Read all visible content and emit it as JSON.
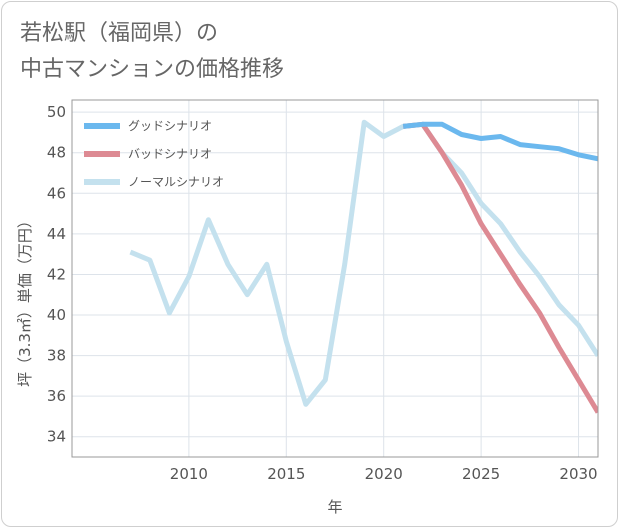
{
  "title_lines": [
    "若松駅（福岡県）の",
    "中古マンションの価格推移"
  ],
  "chart_data": {
    "type": "line",
    "xlabel": "年",
    "ylabel": "坪（3.3㎡）単価（万円）",
    "xlim": [
      2004,
      2031
    ],
    "ylim": [
      33,
      50.6
    ],
    "x_ticks": [
      2010,
      2015,
      2020,
      2025,
      2030
    ],
    "y_ticks": [
      34,
      36,
      38,
      40,
      42,
      44,
      46,
      48,
      50
    ],
    "grid": true,
    "legend_position": "top-left",
    "series": [
      {
        "name": "グッドシナリオ",
        "color": "#6bb8ee",
        "x": [
          2021,
          2022,
          2023,
          2024,
          2025,
          2026,
          2027,
          2028,
          2029,
          2030,
          2031
        ],
        "y": [
          49.3,
          49.4,
          49.4,
          48.9,
          48.7,
          48.8,
          48.4,
          48.3,
          48.2,
          47.9,
          47.7
        ]
      },
      {
        "name": "バッドシナリオ",
        "color": "#dd8a93",
        "x": [
          2021,
          2022,
          2023,
          2024,
          2025,
          2026,
          2027,
          2028,
          2029,
          2030,
          2031
        ],
        "y": [
          49.3,
          49.4,
          48.0,
          46.4,
          44.5,
          43.0,
          41.5,
          40.1,
          38.4,
          36.8,
          35.2
        ]
      },
      {
        "name": "ノーマルシナリオ",
        "color": "#c4e1ee",
        "x": [
          2007,
          2008,
          2009,
          2010,
          2011,
          2012,
          2013,
          2014,
          2015,
          2016,
          2017,
          2018,
          2019,
          2020,
          2021,
          2022,
          2023,
          2024,
          2025,
          2026,
          2027,
          2028,
          2029,
          2030,
          2031
        ],
        "y": [
          43.1,
          42.7,
          40.1,
          41.9,
          44.7,
          42.5,
          41.0,
          42.5,
          38.7,
          35.6,
          36.8,
          42.5,
          49.5,
          48.8,
          49.3,
          49.4,
          48.0,
          47.0,
          45.5,
          44.5,
          43.1,
          41.9,
          40.5,
          39.5,
          38.0
        ]
      }
    ]
  }
}
